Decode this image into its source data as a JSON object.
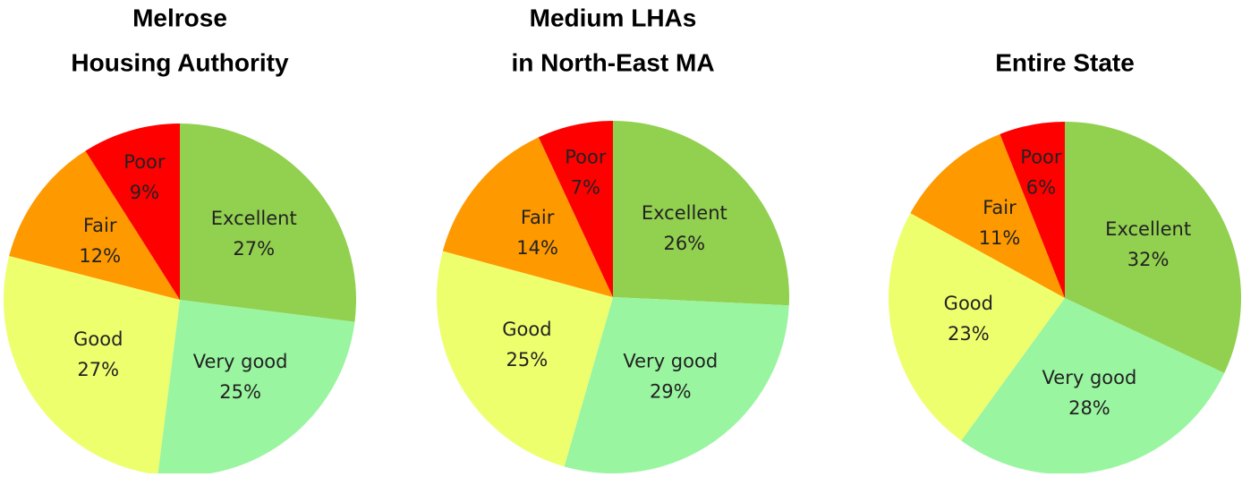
{
  "chart_data": [
    {
      "type": "pie",
      "title": [
        "Melrose",
        "Housing Authority"
      ],
      "categories": [
        "Excellent",
        "Very good",
        "Good",
        "Fair",
        "Poor"
      ],
      "values": [
        27,
        25,
        27,
        12,
        9
      ],
      "value_labels": [
        "27%",
        "25%",
        "27%",
        "12%",
        "9%"
      ],
      "colors": [
        "#92d050",
        "#99f5a0",
        "#eeff6e",
        "#ff9900",
        "#ff0000"
      ]
    },
    {
      "type": "pie",
      "title": [
        "Medium LHAs",
        "in North-East MA"
      ],
      "categories": [
        "Excellent",
        "Very good",
        "Good",
        "Fair",
        "Poor"
      ],
      "values": [
        26,
        29,
        25,
        14,
        7
      ],
      "value_labels": [
        "26%",
        "29%",
        "25%",
        "14%",
        "7%"
      ],
      "colors": [
        "#92d050",
        "#99f5a0",
        "#eeff6e",
        "#ff9900",
        "#ff0000"
      ]
    },
    {
      "type": "pie",
      "title": [
        "Entire State"
      ],
      "categories": [
        "Excellent",
        "Very good",
        "Good",
        "Fair",
        "Poor"
      ],
      "values": [
        32,
        28,
        23,
        11,
        6
      ],
      "value_labels": [
        "32%",
        "28%",
        "23%",
        "11%",
        "6%"
      ],
      "colors": [
        "#92d050",
        "#99f5a0",
        "#eeff6e",
        "#ff9900",
        "#ff0000"
      ]
    }
  ]
}
